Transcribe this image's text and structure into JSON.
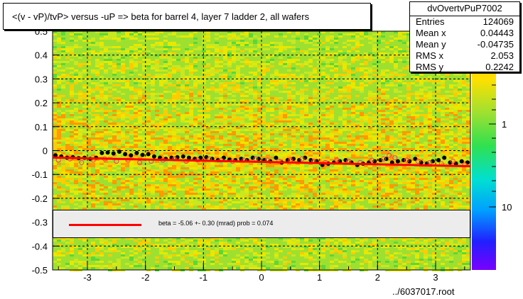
{
  "title": "<(v - vP)/tvP> versus  -uP => beta for barrel 4, layer 7 ladder 2, all wafers",
  "stats": {
    "name": "dvOvertvPuP7002",
    "rows": [
      {
        "label": "Entries",
        "value": "124069"
      },
      {
        "label": "Mean x",
        "value": "0.04443"
      },
      {
        "label": "Mean y",
        "value": "-0.04735"
      },
      {
        "label": "RMS x",
        "value": "2.053"
      },
      {
        "label": "RMS y",
        "value": "0.2242"
      }
    ]
  },
  "legend": {
    "fit_text": "beta =    -5.06 +-  0.30 (mrad) prob = 0.074",
    "line_color": "#ff0000"
  },
  "file_label": "../6037017.root",
  "chart_data": {
    "type": "heatmap",
    "xlim": [
      -3.6,
      3.6
    ],
    "ylim": [
      -0.5,
      0.5
    ],
    "x_ticks": [
      -3,
      -2,
      -1,
      0,
      1,
      2,
      3
    ],
    "y_ticks": [
      -0.5,
      -0.4,
      -0.3,
      -0.2,
      -0.1,
      0,
      0.1,
      0.2,
      0.3,
      0.4
    ],
    "y_tick_labels": [
      "-0.5",
      "-0.4",
      "-0.3",
      "-0.2",
      "-0.1",
      "0",
      "0.1",
      "0.2",
      "0.3",
      "0.4"
    ],
    "y_top_label_partial": "0.5",
    "grid": true,
    "colorbar": {
      "labels": [
        "1",
        "10"
      ],
      "log_scale": true
    },
    "fit_line": {
      "slope": -0.00506,
      "intercept": -0.0475,
      "color": "#ff0000"
    },
    "profile_black": {
      "x": [
        -3.55,
        -3.45,
        -3.35,
        -3.25,
        -3.15,
        -3.05,
        -2.95,
        -2.85,
        -2.75,
        -2.65,
        -2.55,
        -2.45,
        -2.35,
        -2.25,
        -2.15,
        -2.05,
        -1.95,
        -1.85,
        -1.75,
        -1.65,
        -1.55,
        -1.45,
        -1.35,
        -1.25,
        -1.15,
        -1.05,
        -0.95,
        -0.85,
        -0.75,
        -0.65,
        -0.55,
        -0.45,
        -0.35,
        -0.25,
        -0.15,
        -0.05,
        0.05,
        0.15,
        0.25,
        0.35,
        0.45,
        0.55,
        0.65,
        0.75,
        0.85,
        0.95,
        1.05,
        1.15,
        1.25,
        1.35,
        1.45,
        1.55,
        1.65,
        1.75,
        1.85,
        1.95,
        2.05,
        2.15,
        2.25,
        2.35,
        2.45,
        2.55,
        2.65,
        2.75,
        2.85,
        2.95,
        3.05,
        3.15,
        3.25,
        3.35,
        3.45,
        3.55
      ],
      "y": [
        -0.02,
        -0.025,
        -0.03,
        -0.028,
        -0.032,
        -0.03,
        -0.035,
        -0.03,
        -0.01,
        -0.008,
        -0.012,
        -0.005,
        -0.015,
        -0.02,
        -0.01,
        -0.018,
        -0.015,
        -0.025,
        -0.03,
        -0.035,
        -0.03,
        -0.028,
        -0.025,
        -0.03,
        -0.035,
        -0.03,
        -0.028,
        -0.035,
        -0.04,
        -0.03,
        -0.038,
        -0.04,
        -0.035,
        -0.04,
        -0.03,
        -0.035,
        -0.04,
        -0.045,
        -0.03,
        -0.05,
        -0.04,
        -0.035,
        -0.04,
        -0.03,
        -0.04,
        -0.045,
        -0.06,
        -0.055,
        -0.05,
        -0.045,
        -0.04,
        -0.05,
        -0.06,
        -0.055,
        -0.05,
        -0.045,
        -0.04,
        -0.035,
        -0.05,
        -0.045,
        -0.04,
        -0.045,
        -0.035,
        -0.05,
        -0.055,
        -0.045,
        -0.04,
        -0.03,
        -0.05,
        -0.055,
        -0.045,
        -0.05
      ]
    },
    "profile_pink": {
      "x": [
        -3.5,
        -3.3,
        -3.1,
        -2.9,
        -2.7,
        -2.5,
        -2.3,
        -2.1,
        -1.9,
        -1.7,
        -1.5,
        -1.3,
        -1.1,
        -0.9,
        -0.7,
        -0.5,
        -0.3,
        -0.1,
        0.1,
        0.3,
        0.5,
        0.7,
        0.9,
        1.1,
        1.3,
        1.5,
        1.7,
        1.9,
        2.1,
        2.2,
        2.3,
        2.5,
        2.7,
        2.9,
        3.1,
        3.3,
        3.5
      ],
      "y": [
        -0.04,
        -0.035,
        -0.05,
        -0.04,
        -0.035,
        -0.045,
        -0.04,
        -0.05,
        -0.045,
        -0.04,
        -0.035,
        -0.045,
        -0.04,
        -0.035,
        -0.04,
        -0.045,
        -0.04,
        -0.035,
        -0.04,
        -0.045,
        -0.04,
        -0.035,
        -0.045,
        -0.05,
        -0.04,
        -0.045,
        -0.05,
        -0.04,
        -0.035,
        -0.02,
        -0.03,
        -0.04,
        -0.045,
        -0.05,
        -0.055,
        -0.045,
        -0.06
      ]
    }
  }
}
